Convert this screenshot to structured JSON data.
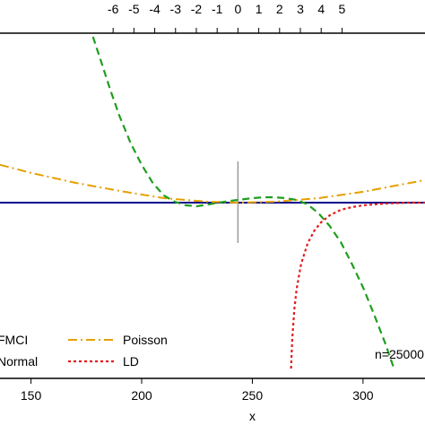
{
  "chart_data": {
    "type": "line",
    "xlabel": "x",
    "x_bottom": {
      "ticks": [
        150,
        200,
        250,
        300
      ],
      "tick_labels": [
        "150",
        "200",
        "250",
        "300"
      ],
      "visible_range": [
        136,
        328
      ]
    },
    "x_top": {
      "ticks": [
        -6,
        -5,
        -4,
        -3,
        -2,
        -1,
        0,
        1,
        2,
        3,
        4,
        5
      ],
      "tick_labels": [
        "-6",
        "-5",
        "-4",
        "-3",
        "-2",
        "-1",
        "0",
        "1",
        "2",
        "3",
        "4",
        "5"
      ],
      "note": "top axis: x standardized, 0 at x = 243.5, 1 unit = 9.4 x-units"
    },
    "center_marker_x": 243.5,
    "series": [
      {
        "name": "Normal",
        "color": "#00008B",
        "dash": "solid",
        "x": [
          136,
          328
        ],
        "y": [
          0,
          0
        ]
      },
      {
        "name": "Poisson",
        "color": "#E69F00",
        "dash": "dashdot",
        "x": [
          136,
          150,
          170,
          190,
          210,
          230,
          243.5,
          260,
          280,
          300,
          315,
          328
        ],
        "y": [
          0.42,
          0.33,
          0.22,
          0.13,
          0.05,
          0.01,
          0,
          0.01,
          0.05,
          0.12,
          0.19,
          0.25
        ]
      },
      {
        "name": "FMCI",
        "color": "#1E9E1E",
        "dash": "dashed",
        "x": [
          178,
          182,
          186,
          190,
          195,
          200,
          205,
          210,
          215,
          220,
          225,
          230,
          235,
          240,
          243.5,
          250,
          255,
          260,
          265,
          270,
          275,
          280,
          285,
          290,
          295,
          300,
          305,
          310,
          314
        ],
        "y": [
          1.84,
          1.54,
          1.24,
          0.96,
          0.66,
          0.42,
          0.22,
          0.08,
          0.01,
          -0.03,
          -0.04,
          -0.02,
          0.0,
          0.02,
          0.03,
          0.05,
          0.06,
          0.06,
          0.05,
          0.03,
          -0.02,
          -0.12,
          -0.26,
          -0.44,
          -0.68,
          -0.94,
          -1.24,
          -1.56,
          -1.84
        ]
      },
      {
        "name": "LD",
        "color": "#E41A1C",
        "dash": "dotted",
        "x": [
          267.5,
          268,
          269,
          270,
          272,
          275,
          278,
          281,
          285,
          290,
          295,
          300,
          310,
          320,
          328
        ],
        "y": [
          -1.84,
          -1.52,
          -1.18,
          -0.96,
          -0.68,
          -0.45,
          -0.31,
          -0.22,
          -0.14,
          -0.08,
          -0.05,
          -0.03,
          -0.01,
          0,
          0
        ]
      }
    ],
    "legend": {
      "placement": "bottom-left",
      "entries": [
        "FMCI",
        "Normal",
        "Poisson",
        "LD"
      ]
    },
    "annotation": "n=25000",
    "ylim": [
      -1.84,
      1.84
    ],
    "grid": false
  }
}
